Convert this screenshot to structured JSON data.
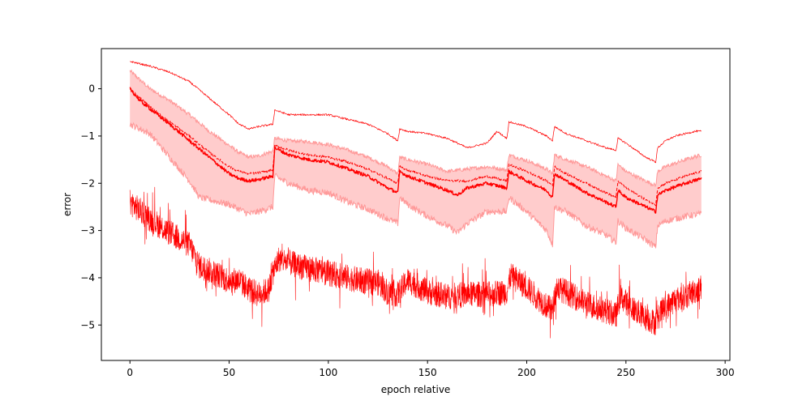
{
  "chart_data": {
    "type": "line",
    "title": "",
    "xlabel": "epoch relative",
    "ylabel": "error",
    "xlim": [
      -14.4,
      302.4
    ],
    "ylim": [
      -5.75,
      0.85
    ],
    "x_ticks": [
      0,
      50,
      100,
      150,
      200,
      250,
      300
    ],
    "x_tick_labels": [
      "0",
      "50",
      "100",
      "150",
      "200",
      "250",
      "300"
    ],
    "y_ticks": [
      0,
      -1,
      -2,
      -3,
      -4,
      -5
    ],
    "y_tick_labels": [
      "0",
      "−1",
      "−2",
      "−3",
      "−4",
      "−5"
    ],
    "grid": false,
    "legend": "none",
    "color": "#ff0000",
    "band_fill_color": "#ffcccc",
    "band_edge_color": "#ff9999",
    "x_range": [
      0,
      288
    ],
    "series": [
      {
        "role": "upper",
        "style": "solid-thin",
        "values": [
          [
            0,
            0.58
          ],
          [
            10,
            0.48
          ],
          [
            20,
            0.35
          ],
          [
            30,
            0.15
          ],
          [
            40,
            -0.2
          ],
          [
            50,
            -0.55
          ],
          [
            55,
            -0.75
          ],
          [
            60,
            -0.85
          ],
          [
            65,
            -0.8
          ],
          [
            72,
            -0.75
          ],
          [
            73,
            -0.45
          ],
          [
            80,
            -0.55
          ],
          [
            90,
            -0.55
          ],
          [
            100,
            -0.55
          ],
          [
            110,
            -0.65
          ],
          [
            120,
            -0.75
          ],
          [
            130,
            -0.95
          ],
          [
            135,
            -1.1
          ],
          [
            136,
            -0.85
          ],
          [
            140,
            -0.9
          ],
          [
            150,
            -0.95
          ],
          [
            160,
            -1.05
          ],
          [
            170,
            -1.25
          ],
          [
            180,
            -1.15
          ],
          [
            185,
            -0.9
          ],
          [
            190,
            -1.05
          ],
          [
            191,
            -0.7
          ],
          [
            200,
            -0.8
          ],
          [
            210,
            -1.0
          ],
          [
            213,
            -1.1
          ],
          [
            214,
            -0.8
          ],
          [
            220,
            -0.95
          ],
          [
            230,
            -1.1
          ],
          [
            240,
            -1.25
          ],
          [
            245,
            -1.3
          ],
          [
            246,
            -1.05
          ],
          [
            250,
            -1.15
          ],
          [
            260,
            -1.45
          ],
          [
            265,
            -1.55
          ],
          [
            266,
            -1.25
          ],
          [
            270,
            -1.1
          ],
          [
            275,
            -1.0
          ],
          [
            280,
            -0.95
          ],
          [
            285,
            -0.9
          ],
          [
            288,
            -0.9
          ]
        ]
      },
      {
        "role": "mean",
        "style": "solid",
        "values": [
          [
            0,
            0.0
          ],
          [
            5,
            -0.25
          ],
          [
            10,
            -0.42
          ],
          [
            20,
            -0.75
          ],
          [
            30,
            -1.1
          ],
          [
            40,
            -1.45
          ],
          [
            50,
            -1.8
          ],
          [
            55,
            -1.9
          ],
          [
            60,
            -1.95
          ],
          [
            65,
            -1.92
          ],
          [
            72,
            -1.85
          ],
          [
            73,
            -1.25
          ],
          [
            80,
            -1.4
          ],
          [
            90,
            -1.5
          ],
          [
            100,
            -1.55
          ],
          [
            110,
            -1.7
          ],
          [
            120,
            -1.85
          ],
          [
            130,
            -2.1
          ],
          [
            135,
            -2.2
          ],
          [
            136,
            -1.75
          ],
          [
            140,
            -1.85
          ],
          [
            150,
            -2.0
          ],
          [
            160,
            -2.15
          ],
          [
            165,
            -2.25
          ],
          [
            170,
            -2.1
          ],
          [
            180,
            -2.0
          ],
          [
            190,
            -2.1
          ],
          [
            191,
            -1.75
          ],
          [
            200,
            -1.95
          ],
          [
            210,
            -2.15
          ],
          [
            213,
            -2.3
          ],
          [
            214,
            -1.8
          ],
          [
            220,
            -1.95
          ],
          [
            230,
            -2.2
          ],
          [
            240,
            -2.4
          ],
          [
            245,
            -2.5
          ],
          [
            246,
            -2.15
          ],
          [
            250,
            -2.3
          ],
          [
            260,
            -2.5
          ],
          [
            265,
            -2.6
          ],
          [
            266,
            -2.25
          ],
          [
            270,
            -2.15
          ],
          [
            280,
            -2.0
          ],
          [
            288,
            -1.9
          ]
        ]
      },
      {
        "role": "mean-alt",
        "style": "dashed",
        "values": [
          [
            0,
            0.0
          ],
          [
            10,
            -0.38
          ],
          [
            20,
            -0.7
          ],
          [
            30,
            -1.0
          ],
          [
            40,
            -1.35
          ],
          [
            50,
            -1.65
          ],
          [
            55,
            -1.75
          ],
          [
            60,
            -1.8
          ],
          [
            65,
            -1.78
          ],
          [
            72,
            -1.72
          ],
          [
            73,
            -1.2
          ],
          [
            80,
            -1.3
          ],
          [
            90,
            -1.4
          ],
          [
            100,
            -1.45
          ],
          [
            110,
            -1.55
          ],
          [
            120,
            -1.7
          ],
          [
            130,
            -1.9
          ],
          [
            135,
            -2.0
          ],
          [
            136,
            -1.65
          ],
          [
            140,
            -1.72
          ],
          [
            150,
            -1.85
          ],
          [
            160,
            -1.95
          ],
          [
            170,
            -1.95
          ],
          [
            180,
            -1.85
          ],
          [
            190,
            -1.95
          ],
          [
            191,
            -1.6
          ],
          [
            200,
            -1.75
          ],
          [
            210,
            -1.95
          ],
          [
            213,
            -2.05
          ],
          [
            214,
            -1.65
          ],
          [
            220,
            -1.8
          ],
          [
            230,
            -2.0
          ],
          [
            240,
            -2.2
          ],
          [
            245,
            -2.3
          ],
          [
            246,
            -1.95
          ],
          [
            250,
            -2.1
          ],
          [
            260,
            -2.35
          ],
          [
            265,
            -2.45
          ],
          [
            266,
            -2.1
          ],
          [
            270,
            -2.0
          ],
          [
            280,
            -1.85
          ],
          [
            288,
            -1.75
          ]
        ]
      },
      {
        "role": "lower",
        "style": "noisy-thin",
        "values": [
          [
            0,
            -2.4
          ],
          [
            10,
            -2.75
          ],
          [
            20,
            -3.05
          ],
          [
            30,
            -3.3
          ],
          [
            35,
            -3.75
          ],
          [
            40,
            -3.85
          ],
          [
            50,
            -4.05
          ],
          [
            55,
            -4.05
          ],
          [
            60,
            -4.25
          ],
          [
            65,
            -4.35
          ],
          [
            70,
            -4.25
          ],
          [
            72,
            -3.9
          ],
          [
            75,
            -3.6
          ],
          [
            85,
            -3.75
          ],
          [
            95,
            -3.85
          ],
          [
            105,
            -3.95
          ],
          [
            115,
            -4.05
          ],
          [
            125,
            -4.1
          ],
          [
            130,
            -4.3
          ],
          [
            135,
            -4.35
          ],
          [
            140,
            -4.05
          ],
          [
            150,
            -4.3
          ],
          [
            160,
            -4.4
          ],
          [
            170,
            -4.35
          ],
          [
            180,
            -4.35
          ],
          [
            190,
            -4.3
          ],
          [
            192,
            -3.95
          ],
          [
            200,
            -4.2
          ],
          [
            210,
            -4.6
          ],
          [
            213,
            -4.7
          ],
          [
            215,
            -4.2
          ],
          [
            220,
            -4.3
          ],
          [
            230,
            -4.55
          ],
          [
            240,
            -4.7
          ],
          [
            245,
            -4.8
          ],
          [
            247,
            -4.4
          ],
          [
            255,
            -4.7
          ],
          [
            260,
            -4.85
          ],
          [
            265,
            -4.95
          ],
          [
            268,
            -4.7
          ],
          [
            275,
            -4.45
          ],
          [
            280,
            -4.4
          ],
          [
            288,
            -4.2
          ]
        ]
      }
    ],
    "band": {
      "upper": [
        [
          0,
          0.38
        ],
        [
          10,
          0.0
        ],
        [
          20,
          -0.25
        ],
        [
          30,
          -0.55
        ],
        [
          40,
          -0.9
        ],
        [
          50,
          -1.2
        ],
        [
          55,
          -1.35
        ],
        [
          60,
          -1.45
        ],
        [
          65,
          -1.42
        ],
        [
          72,
          -1.32
        ],
        [
          73,
          -1.05
        ],
        [
          80,
          -1.1
        ],
        [
          90,
          -1.12
        ],
        [
          100,
          -1.18
        ],
        [
          110,
          -1.3
        ],
        [
          120,
          -1.45
        ],
        [
          130,
          -1.65
        ],
        [
          135,
          -1.8
        ],
        [
          136,
          -1.45
        ],
        [
          140,
          -1.5
        ],
        [
          150,
          -1.6
        ],
        [
          160,
          -1.75
        ],
        [
          170,
          -1.7
        ],
        [
          180,
          -1.65
        ],
        [
          190,
          -1.72
        ],
        [
          191,
          -1.4
        ],
        [
          200,
          -1.52
        ],
        [
          210,
          -1.7
        ],
        [
          213,
          -1.8
        ],
        [
          214,
          -1.4
        ],
        [
          220,
          -1.5
        ],
        [
          230,
          -1.65
        ],
        [
          240,
          -1.85
        ],
        [
          245,
          -1.95
        ],
        [
          246,
          -1.6
        ],
        [
          250,
          -1.75
        ],
        [
          260,
          -1.95
        ],
        [
          265,
          -2.05
        ],
        [
          266,
          -1.75
        ],
        [
          270,
          -1.65
        ],
        [
          280,
          -1.5
        ],
        [
          288,
          -1.4
        ]
      ],
      "lower": [
        [
          0,
          -0.75
        ],
        [
          10,
          -0.95
        ],
        [
          20,
          -1.45
        ],
        [
          30,
          -1.95
        ],
        [
          35,
          -2.3
        ],
        [
          40,
          -2.35
        ],
        [
          50,
          -2.45
        ],
        [
          55,
          -2.55
        ],
        [
          60,
          -2.65
        ],
        [
          65,
          -2.6
        ],
        [
          72,
          -2.5
        ],
        [
          73,
          -1.85
        ],
        [
          80,
          -2.0
        ],
        [
          90,
          -2.15
        ],
        [
          100,
          -2.2
        ],
        [
          110,
          -2.4
        ],
        [
          120,
          -2.55
        ],
        [
          130,
          -2.75
        ],
        [
          135,
          -2.85
        ],
        [
          136,
          -2.3
        ],
        [
          140,
          -2.45
        ],
        [
          150,
          -2.7
        ],
        [
          160,
          -2.9
        ],
        [
          165,
          -3.05
        ],
        [
          170,
          -2.85
        ],
        [
          180,
          -2.6
        ],
        [
          190,
          -2.6
        ],
        [
          191,
          -2.3
        ],
        [
          200,
          -2.6
        ],
        [
          210,
          -3.0
        ],
        [
          213,
          -3.3
        ],
        [
          214,
          -2.5
        ],
        [
          220,
          -2.6
        ],
        [
          230,
          -2.9
        ],
        [
          240,
          -3.1
        ],
        [
          245,
          -3.25
        ],
        [
          246,
          -2.8
        ],
        [
          250,
          -2.95
        ],
        [
          260,
          -3.2
        ],
        [
          265,
          -3.35
        ],
        [
          266,
          -2.9
        ],
        [
          270,
          -2.8
        ],
        [
          280,
          -2.7
        ],
        [
          288,
          -2.65
        ]
      ]
    }
  }
}
